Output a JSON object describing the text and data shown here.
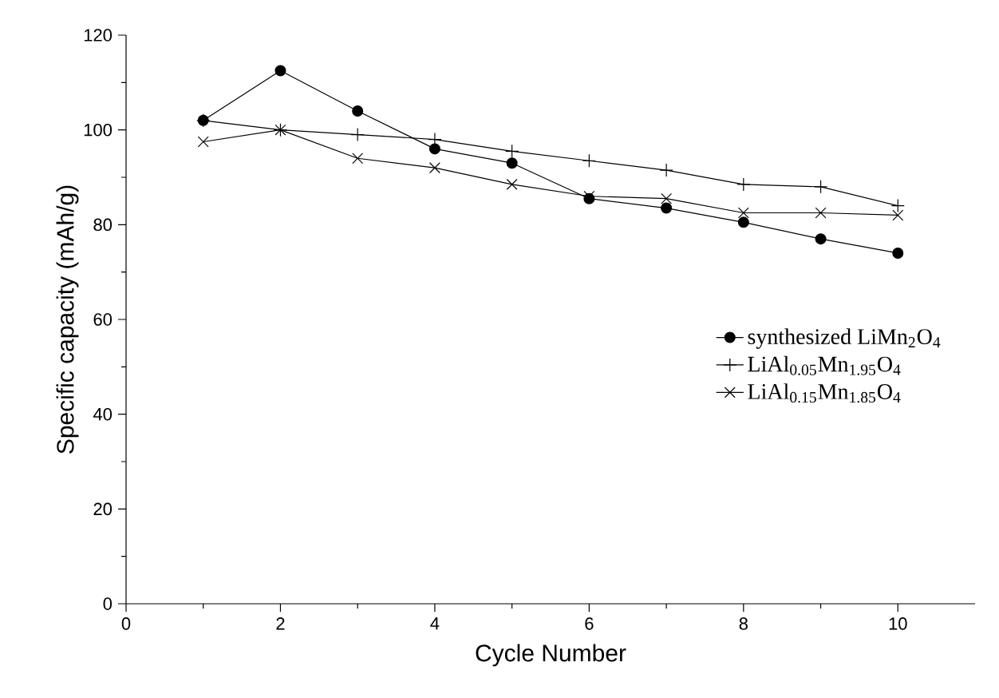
{
  "chart_data": {
    "type": "line",
    "xlabel": "Cycle Number",
    "ylabel": "Specific capacity (mAh/g)",
    "x": [
      1,
      2,
      3,
      4,
      5,
      6,
      7,
      8,
      9,
      10
    ],
    "series": [
      {
        "name": "synthesized LiMn$_{2}$O$_{4}$",
        "color": "#000000",
        "marker": "circle",
        "values": [
          102,
          112.5,
          104,
          96,
          93,
          85.5,
          83.5,
          80.5,
          77,
          74
        ]
      },
      {
        "name": "LiAl$_{0.05}$Mn$_{1.95}$O$_{4}$",
        "color": "#000000",
        "marker": "plus",
        "values": [
          102,
          100,
          99,
          98,
          95.5,
          93.5,
          91.5,
          88.5,
          88,
          84
        ]
      },
      {
        "name": "LiAl$_{0.15}$Mn$_{1.85}$O$_{4}$",
        "color": "#000000",
        "marker": "cross",
        "values": [
          97.5,
          100,
          94,
          92,
          88.5,
          86,
          85.5,
          82.5,
          82.5,
          82
        ]
      }
    ],
    "xlim": [
      0,
      11
    ],
    "ylim": [
      0,
      120
    ],
    "xticks": [
      0,
      2,
      4,
      6,
      8,
      10
    ],
    "yticks": [
      0,
      20,
      40,
      60,
      80,
      100,
      120
    ],
    "legend": "right",
    "line_style": "solid"
  }
}
